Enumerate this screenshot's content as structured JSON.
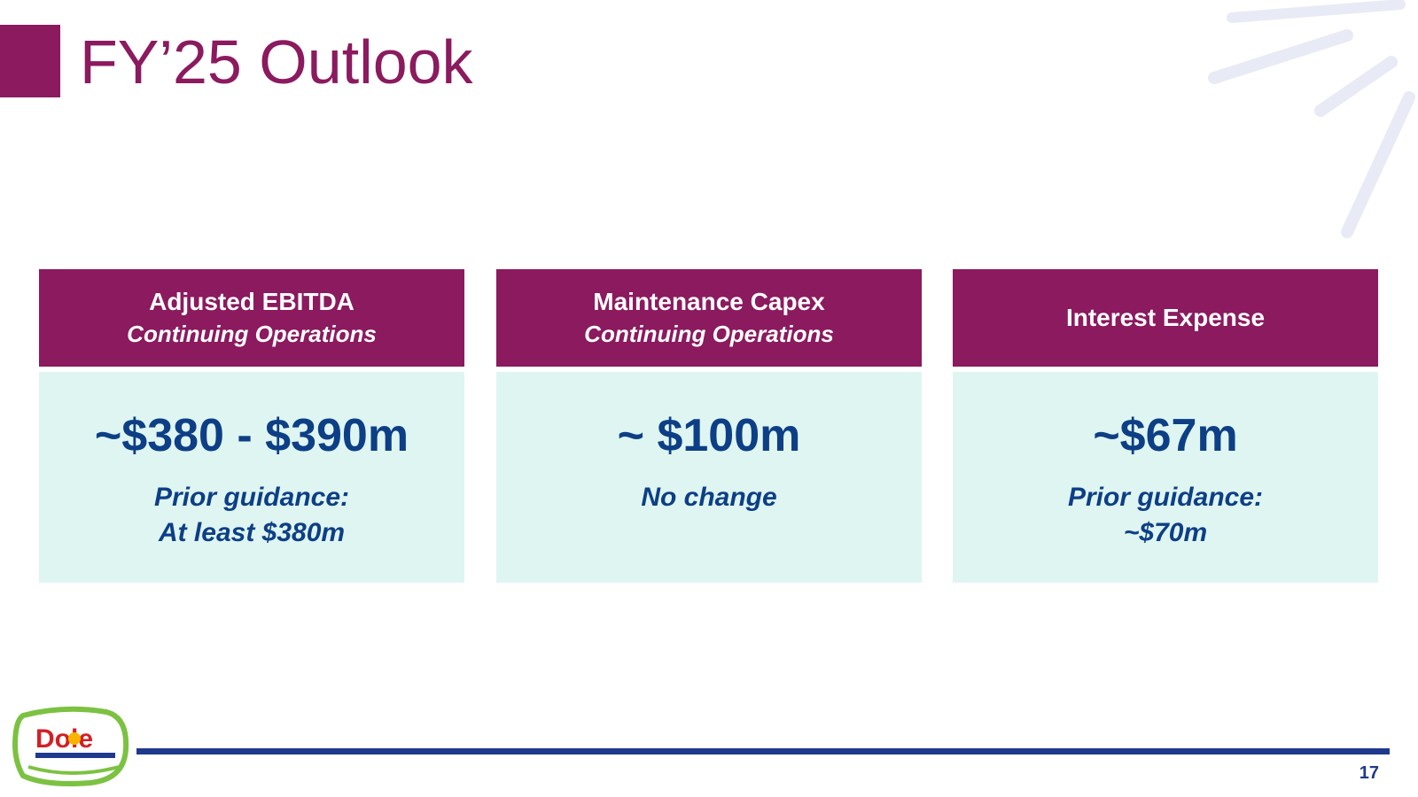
{
  "slide": {
    "title": "FY’25 Outlook",
    "page_number": "17"
  },
  "cards": [
    {
      "header_line1": "Adjusted EBITDA",
      "header_line2": "Continuing Operations",
      "value": "~$380 - $390m",
      "note_line1": "Prior guidance:",
      "note_line2": "At least $380m"
    },
    {
      "header_line1": "Maintenance Capex",
      "header_line2": "Continuing Operations",
      "value": "~ $100m",
      "note_line1": "No change",
      "note_line2": ""
    },
    {
      "header_line1": "Interest Expense",
      "header_line2": "",
      "value": "~$67m",
      "note_line1": "Prior guidance:",
      "note_line2": "~$70m"
    }
  ],
  "logo": {
    "text": "Dole"
  },
  "colors": {
    "brand_purple": "#8b1a5f",
    "value_blue": "#0d3f86",
    "card_bg": "#dff5f1",
    "footer_blue": "#1f3a8c"
  }
}
